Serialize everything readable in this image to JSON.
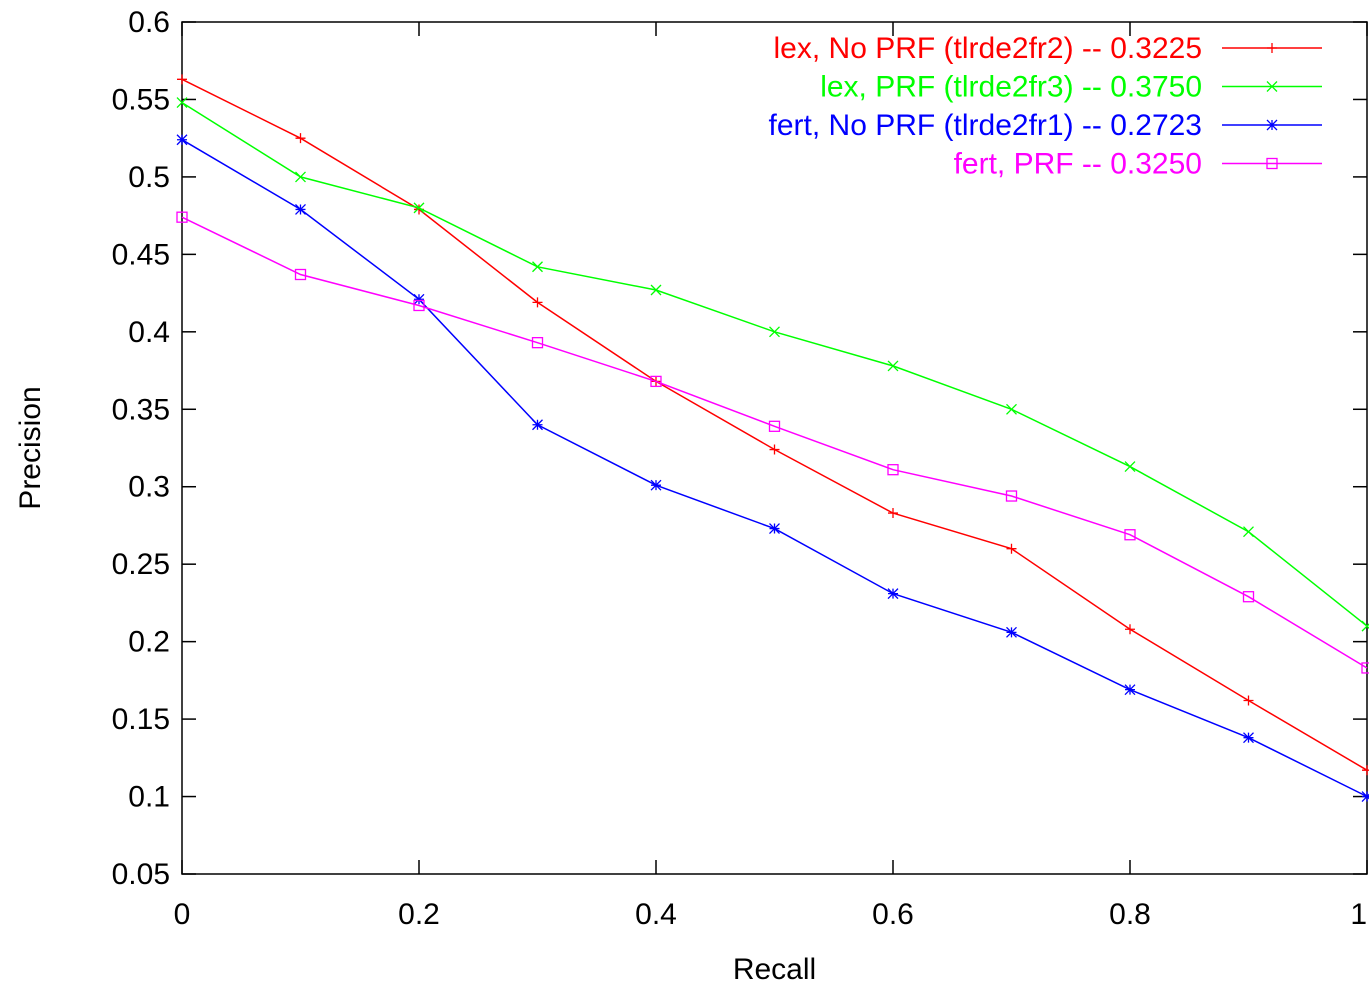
{
  "chart_data": {
    "type": "line",
    "title": "",
    "xlabel": "Recall",
    "ylabel": "Precision",
    "xlim": [
      0,
      1
    ],
    "ylim": [
      0.05,
      0.6
    ],
    "xticks": [
      0,
      0.2,
      0.4,
      0.6,
      0.8,
      1
    ],
    "xtick_labels": [
      "0",
      "0.2",
      "0.4",
      "0.6",
      "0.8",
      "1"
    ],
    "yticks": [
      0.05,
      0.1,
      0.15,
      0.2,
      0.25,
      0.3,
      0.35,
      0.4,
      0.45,
      0.5,
      0.55,
      0.6
    ],
    "ytick_labels": [
      "0.05",
      "0.1",
      "0.15",
      "0.2",
      "0.25",
      "0.3",
      "0.35",
      "0.4",
      "0.45",
      "0.5",
      "0.55",
      "0.6"
    ],
    "grid": false,
    "legend_position": "top-right",
    "x": [
      0,
      0.1,
      0.2,
      0.3,
      0.4,
      0.5,
      0.6,
      0.7,
      0.8,
      0.9,
      1.0
    ],
    "series": [
      {
        "name": "lex, No PRF (tlrde2fr2) -- 0.3225",
        "color": "#ff0000",
        "marker": "plus",
        "values": [
          0.563,
          0.525,
          0.479,
          0.419,
          0.368,
          0.324,
          0.283,
          0.26,
          0.208,
          0.162,
          0.117
        ]
      },
      {
        "name": "lex, PRF (tlrde2fr3) -- 0.3750",
        "color": "#00ff00",
        "marker": "cross",
        "values": [
          0.548,
          0.5,
          0.48,
          0.442,
          0.427,
          0.4,
          0.378,
          0.35,
          0.313,
          0.271,
          0.21
        ]
      },
      {
        "name": "fert, No PRF (tlrde2fr1) -- 0.2723",
        "color": "#0000ff",
        "marker": "star",
        "values": [
          0.524,
          0.479,
          0.421,
          0.34,
          0.301,
          0.273,
          0.231,
          0.206,
          0.169,
          0.138,
          0.1
        ]
      },
      {
        "name": "fert, PRF -- 0.3250",
        "color": "#ff00ff",
        "marker": "square",
        "values": [
          0.474,
          0.437,
          0.417,
          0.393,
          0.368,
          0.339,
          0.311,
          0.294,
          0.269,
          0.229,
          0.183
        ]
      }
    ]
  }
}
